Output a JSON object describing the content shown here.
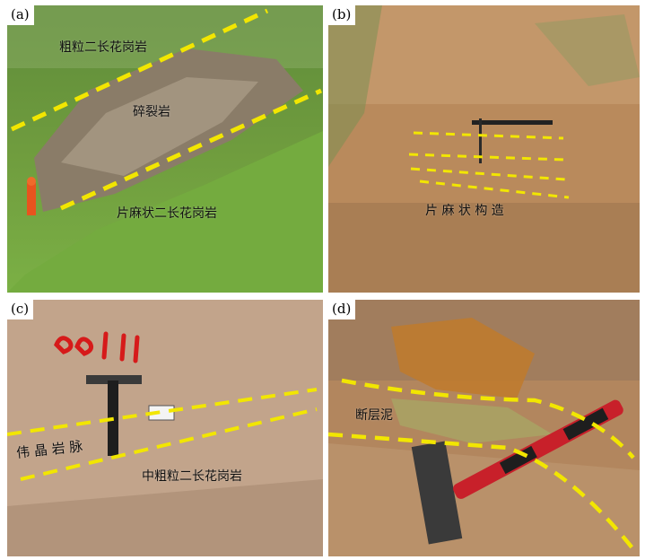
{
  "panels": [
    {
      "label": "(a)",
      "annotations": [
        "粗粒二长花岗岩",
        "碎裂岩",
        "片麻状二长花岗岩"
      ]
    },
    {
      "label": "(b)",
      "annotations": [
        "片 麻 状 构 造"
      ]
    },
    {
      "label": "(c)",
      "annotations": [
        "伟 晶 岩 脉",
        "中粗粒二长花岗岩"
      ]
    },
    {
      "label": "(d)",
      "annotations": [
        "断层泥"
      ]
    }
  ],
  "colors": {
    "dashed_line": "#f2e600",
    "paint_mark": "#d61a1a"
  }
}
